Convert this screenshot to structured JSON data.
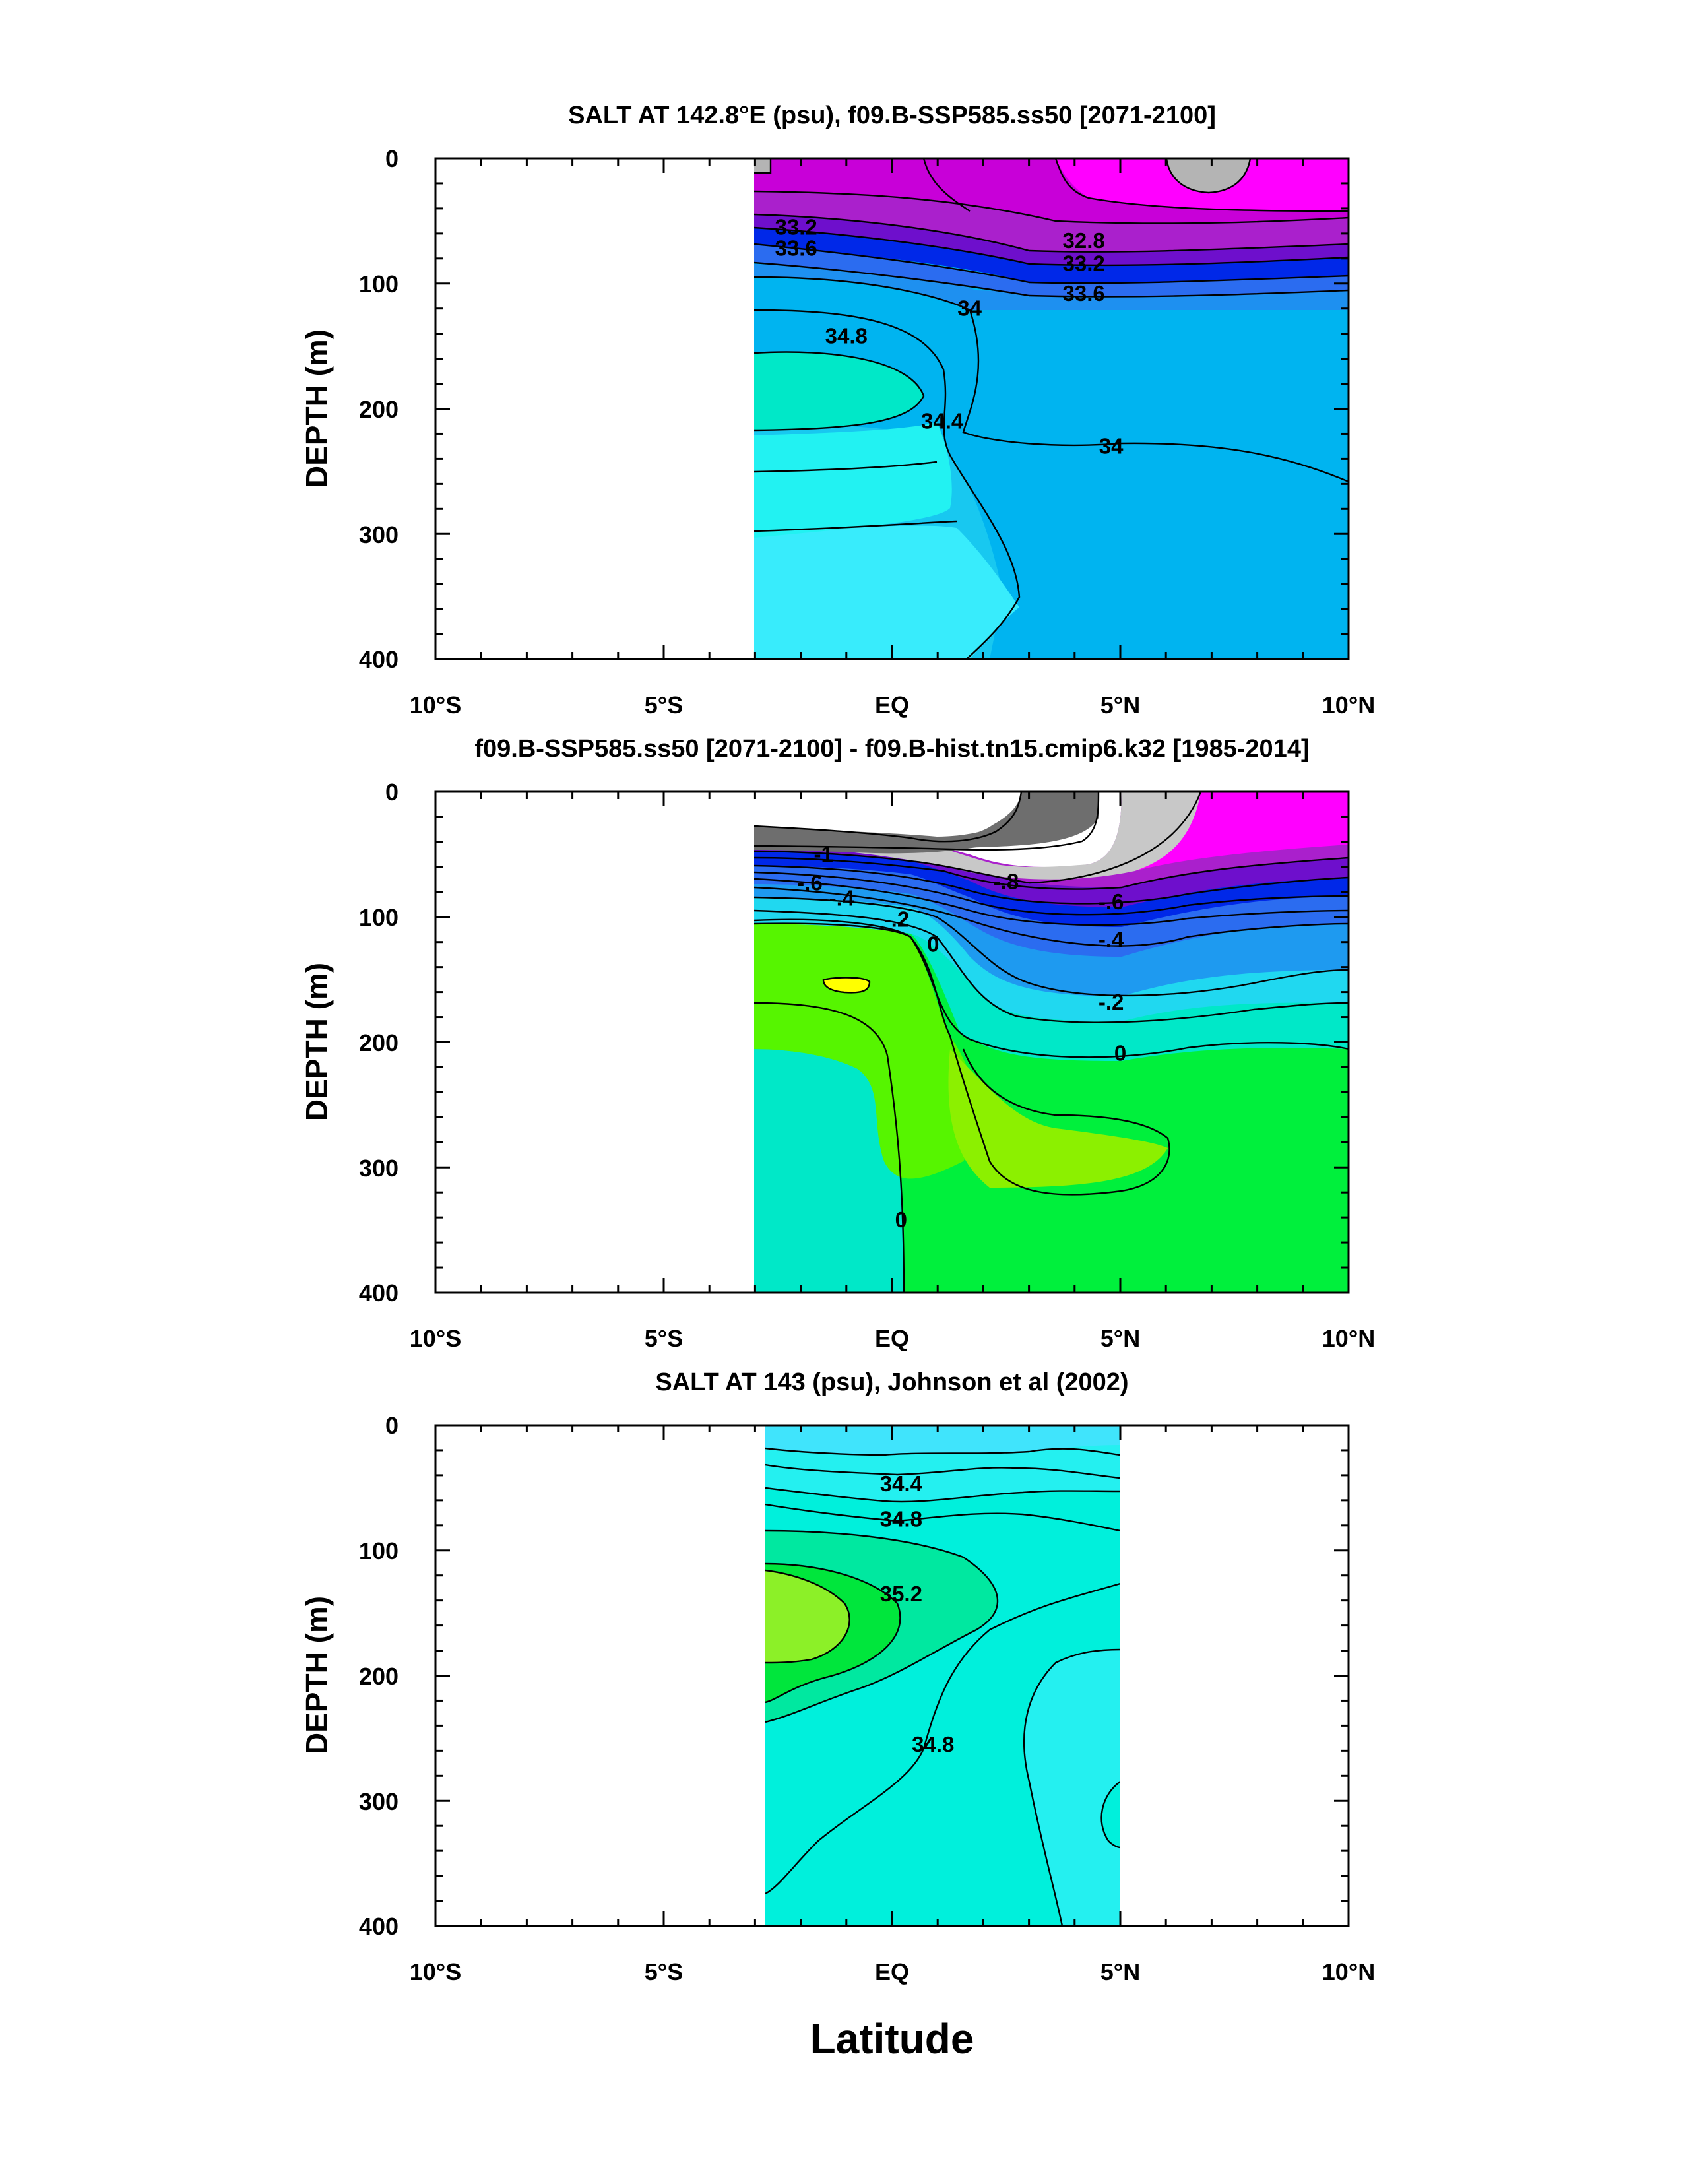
{
  "figure": {
    "xlabel": "Latitude"
  },
  "chart_data": [
    {
      "type": "contour",
      "title": "SALT AT 142.8°E (psu), f09.B-SSP585.ss50 [2071-2100]",
      "ylabel": "DEPTH (m)",
      "xlim": [
        -10,
        10
      ],
      "ylim": [
        400,
        0
      ],
      "x_ticks": [
        -10,
        -5,
        0,
        5,
        10
      ],
      "x_tick_labels": [
        "10°S",
        "5°S",
        "EQ",
        "5°N",
        "10°N"
      ],
      "y_ticks": [
        0,
        100,
        200,
        300,
        400
      ],
      "y_tick_labels": [
        "0",
        "100",
        "200",
        "300",
        "400"
      ],
      "data_extent_lat": [
        -3,
        10
      ],
      "contour_labels": [
        {
          "text": "33.2",
          "lat": -2.1,
          "depth": 55
        },
        {
          "text": "33.6",
          "lat": -2.1,
          "depth": 72
        },
        {
          "text": "32.8",
          "lat": 4.2,
          "depth": 66
        },
        {
          "text": "33.2",
          "lat": 4.2,
          "depth": 84
        },
        {
          "text": "33.6",
          "lat": 4.2,
          "depth": 108
        },
        {
          "text": "34",
          "lat": 1.7,
          "depth": 120
        },
        {
          "text": "34.8",
          "lat": -1.0,
          "depth": 142
        },
        {
          "text": "34.4",
          "lat": 1.1,
          "depth": 210
        },
        {
          "text": "34",
          "lat": 4.8,
          "depth": 230
        }
      ]
    },
    {
      "type": "contour",
      "title": "f09.B-SSP585.ss50 [2071-2100] - f09.B-hist.tn15.cmip6.k32 [1985-2014]",
      "ylabel": "DEPTH (m)",
      "xlim": [
        -10,
        10
      ],
      "ylim": [
        400,
        0
      ],
      "x_ticks": [
        -10,
        -5,
        0,
        5,
        10
      ],
      "x_tick_labels": [
        "10°S",
        "5°S",
        "EQ",
        "5°N",
        "10°N"
      ],
      "y_ticks": [
        0,
        100,
        200,
        300,
        400
      ],
      "y_tick_labels": [
        "0",
        "100",
        "200",
        "300",
        "400"
      ],
      "data_extent_lat": [
        -3,
        10
      ],
      "contour_labels": [
        {
          "text": "-1",
          "lat": -1.5,
          "depth": 50
        },
        {
          "text": "-.6",
          "lat": -1.8,
          "depth": 73
        },
        {
          "text": "-.4",
          "lat": -1.1,
          "depth": 85
        },
        {
          "text": "-.2",
          "lat": 0.1,
          "depth": 102
        },
        {
          "text": "0",
          "lat": 0.9,
          "depth": 122
        },
        {
          "text": "-.8",
          "lat": 2.5,
          "depth": 72
        },
        {
          "text": "-.6",
          "lat": 4.8,
          "depth": 88
        },
        {
          "text": "-.4",
          "lat": 4.8,
          "depth": 118
        },
        {
          "text": "-.2",
          "lat": 4.8,
          "depth": 168
        },
        {
          "text": "0",
          "lat": 5.0,
          "depth": 209
        },
        {
          "text": "0",
          "lat": 0.2,
          "depth": 342
        }
      ]
    },
    {
      "type": "contour",
      "title": "SALT AT 143 (psu), Johnson et al (2002)",
      "ylabel": "DEPTH (m)",
      "xlim": [
        -10,
        10
      ],
      "ylim": [
        400,
        0
      ],
      "x_ticks": [
        -10,
        -5,
        0,
        5,
        10
      ],
      "x_tick_labels": [
        "10°S",
        "5°S",
        "EQ",
        "5°N",
        "10°N"
      ],
      "y_ticks": [
        0,
        100,
        200,
        300,
        400
      ],
      "y_tick_labels": [
        "0",
        "100",
        "200",
        "300",
        "400"
      ],
      "data_extent_lat": [
        -2.8,
        5
      ],
      "contour_labels": [
        {
          "text": "34.4",
          "lat": 0.2,
          "depth": 47
        },
        {
          "text": "34.8",
          "lat": 0.2,
          "depth": 75
        },
        {
          "text": "35.2",
          "lat": 0.2,
          "depth": 135
        },
        {
          "text": "34.8",
          "lat": 0.9,
          "depth": 255
        }
      ]
    }
  ]
}
